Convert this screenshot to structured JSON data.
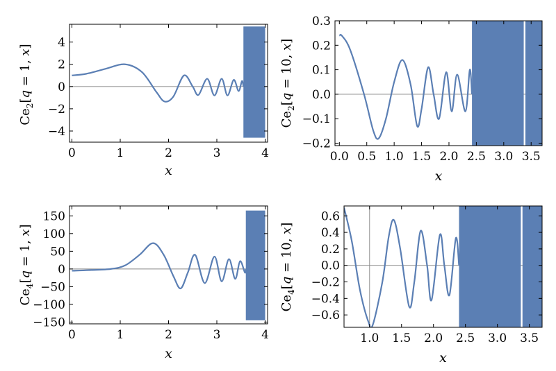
{
  "colors": {
    "curve": "#5b7fb4",
    "axis": "#000000",
    "zero_line": "#888888"
  },
  "chart_data": [
    {
      "type": "line",
      "function": "Mathieu cosine Ce_2 with q = 1",
      "ylabel_parts": [
        "Ce",
        "2",
        "[",
        "q",
        " = 1, ",
        "x",
        "]"
      ],
      "xlabel": "x",
      "xlim": [
        -0.05,
        4.05
      ],
      "ylim": [
        -5,
        5.6
      ],
      "xticks": [
        0,
        1,
        2,
        3,
        4
      ],
      "xtick_labels": [
        "0",
        "1",
        "2",
        "3",
        "4"
      ],
      "yticks": [
        4,
        2,
        0,
        -2,
        -4
      ],
      "ytick_labels": [
        "4",
        "2",
        "0",
        "−2",
        "−4"
      ],
      "series": [
        {
          "points": [
            [
              0,
              1.0
            ],
            [
              0.3,
              1.15
            ],
            [
              0.7,
              1.6
            ],
            [
              1.1,
              2.0
            ],
            [
              1.45,
              1.3
            ],
            [
              1.75,
              -0.5
            ],
            [
              1.92,
              -1.35
            ],
            [
              2.1,
              -0.9
            ],
            [
              2.32,
              1.0
            ],
            [
              2.5,
              0.0
            ],
            [
              2.62,
              -0.75
            ],
            [
              2.8,
              0.7
            ],
            [
              2.95,
              -0.8
            ],
            [
              3.1,
              0.7
            ],
            [
              3.22,
              -0.8
            ],
            [
              3.35,
              0.6
            ],
            [
              3.45,
              -0.4
            ],
            [
              3.52,
              0.5
            ],
            [
              3.55,
              0.0
            ]
          ]
        }
      ],
      "noise_region": {
        "x_start": 3.55,
        "x_end": 4.0,
        "y_min": -4.6,
        "y_max": 5.4,
        "gaps": []
      }
    },
    {
      "type": "line",
      "function": "Mathieu cosine Ce_2 with q = 10",
      "ylabel_parts": [
        "Ce",
        "2",
        "[",
        "q",
        " = 10, ",
        "x",
        "]"
      ],
      "xlabel": "x",
      "xlim": [
        -0.08,
        3.7
      ],
      "ylim": [
        -0.21,
        0.3
      ],
      "xticks": [
        0,
        0.5,
        1,
        1.5,
        2,
        2.5,
        3,
        3.5
      ],
      "xtick_labels": [
        "0.0",
        "0.5",
        "1.0",
        "1.5",
        "2.0",
        "2.5",
        "3.0",
        "3.5"
      ],
      "yticks": [
        0.3,
        0.2,
        0.1,
        0,
        -0.1,
        -0.2
      ],
      "ytick_labels": [
        "0.3",
        "0.2",
        "0.1",
        "0.0",
        "−0.1",
        "−0.2"
      ],
      "series": [
        {
          "points": [
            [
              0,
              0.24
            ],
            [
              0.05,
              0.238
            ],
            [
              0.2,
              0.18
            ],
            [
              0.45,
              0.0
            ],
            [
              0.62,
              -0.15
            ],
            [
              0.72,
              -0.18
            ],
            [
              0.85,
              -0.1
            ],
            [
              1.0,
              0.05
            ],
            [
              1.15,
              0.14
            ],
            [
              1.3,
              0.04
            ],
            [
              1.42,
              -0.13
            ],
            [
              1.5,
              -0.06
            ],
            [
              1.62,
              0.11
            ],
            [
              1.72,
              0.0
            ],
            [
              1.82,
              -0.1
            ],
            [
              1.95,
              0.09
            ],
            [
              2.05,
              -0.07
            ],
            [
              2.15,
              0.08
            ],
            [
              2.3,
              -0.07
            ],
            [
              2.38,
              0.1
            ],
            [
              2.42,
              0.0
            ]
          ]
        }
      ],
      "noise_region": {
        "x_start": 2.42,
        "x_end": 3.7,
        "y_min": -0.21,
        "y_max": 0.3,
        "gaps": [
          3.38
        ]
      }
    },
    {
      "type": "line",
      "function": "Mathieu cosine Ce_4 with q = 1",
      "ylabel_parts": [
        "Ce",
        "4",
        "[",
        "q",
        " = 1, ",
        "x",
        "]"
      ],
      "xlabel": "x",
      "xlim": [
        -0.05,
        4.05
      ],
      "ylim": [
        -155,
        178
      ],
      "xticks": [
        0,
        1,
        2,
        3,
        4
      ],
      "xtick_labels": [
        "0",
        "1",
        "2",
        "3",
        "4"
      ],
      "yticks": [
        150,
        100,
        50,
        0,
        -50,
        -100,
        -150
      ],
      "ytick_labels": [
        "150",
        "100",
        "50",
        "0",
        "−50",
        "−100",
        "−150"
      ],
      "series": [
        {
          "points": [
            [
              0,
              -5
            ],
            [
              0.4,
              -3
            ],
            [
              0.8,
              0
            ],
            [
              1.1,
              10
            ],
            [
              1.4,
              40
            ],
            [
              1.68,
              73
            ],
            [
              1.9,
              40
            ],
            [
              2.1,
              -20
            ],
            [
              2.25,
              -55
            ],
            [
              2.4,
              -10
            ],
            [
              2.55,
              40
            ],
            [
              2.75,
              -40
            ],
            [
              2.95,
              35
            ],
            [
              3.1,
              -35
            ],
            [
              3.25,
              28
            ],
            [
              3.38,
              -28
            ],
            [
              3.48,
              22
            ],
            [
              3.58,
              -10
            ],
            [
              3.6,
              0
            ]
          ]
        }
      ],
      "noise_region": {
        "x_start": 3.6,
        "x_end": 4.0,
        "y_min": -145,
        "y_max": 165,
        "gaps": []
      }
    },
    {
      "type": "line",
      "function": "Mathieu cosine Ce_4 with q = 10",
      "ylabel_parts": [
        "Ce",
        "4",
        "[",
        "q",
        " = 10, ",
        "x",
        "]"
      ],
      "xlabel": "x",
      "xlim": [
        0.6,
        3.7
      ],
      "ylim": [
        -0.75,
        0.72
      ],
      "xticks": [
        1,
        1.5,
        2,
        2.5,
        3,
        3.5
      ],
      "xtick_labels": [
        "1.0",
        "1.5",
        "2.0",
        "2.5",
        "3.0",
        "3.5"
      ],
      "yticks": [
        0.6,
        0.4,
        0.2,
        0,
        -0.2,
        -0.4,
        -0.6
      ],
      "ytick_labels": [
        "0.6",
        "0.4",
        "0.2",
        "0.0",
        "−0.2",
        "−0.4",
        "−0.6"
      ],
      "vline_x": 1.0,
      "series": [
        {
          "points": [
            [
              0.6,
              0.7
            ],
            [
              0.72,
              0.3
            ],
            [
              0.85,
              -0.3
            ],
            [
              0.98,
              -0.68
            ],
            [
              1.05,
              -0.72
            ],
            [
              1.2,
              -0.2
            ],
            [
              1.3,
              0.35
            ],
            [
              1.38,
              0.55
            ],
            [
              1.48,
              0.2
            ],
            [
              1.62,
              -0.5
            ],
            [
              1.7,
              -0.2
            ],
            [
              1.8,
              0.42
            ],
            [
              1.9,
              0.0
            ],
            [
              1.97,
              -0.42
            ],
            [
              2.1,
              0.37
            ],
            [
              2.17,
              0.0
            ],
            [
              2.25,
              -0.36
            ],
            [
              2.35,
              0.33
            ],
            [
              2.4,
              0.0
            ]
          ]
        }
      ],
      "noise_region": {
        "x_start": 2.4,
        "x_end": 3.7,
        "y_min": -0.75,
        "y_max": 0.72,
        "gaps": [
          3.38
        ]
      }
    }
  ]
}
